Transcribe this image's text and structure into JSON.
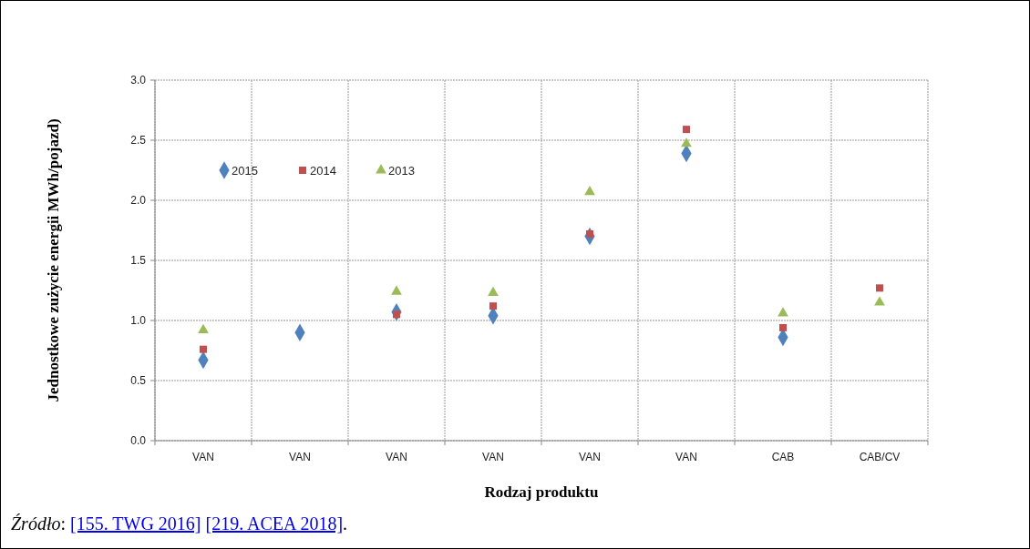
{
  "chart_data": {
    "type": "scatter",
    "xlabel": "Rodzaj produktu",
    "ylabel": "Jednostkowe zużycie energii MWh/pojazd)",
    "categories": [
      "VAN",
      "VAN",
      "VAN",
      "VAN",
      "VAN",
      "VAN",
      "CAB",
      "CAB/CV"
    ],
    "series": [
      {
        "name": "2015",
        "color": "#4f81bd",
        "marker": "diamond",
        "values": [
          0.67,
          0.9,
          1.07,
          1.04,
          1.7,
          2.39,
          0.86,
          null
        ]
      },
      {
        "name": "2014",
        "color": "#c0504d",
        "marker": "square",
        "values": [
          0.76,
          null,
          1.05,
          1.12,
          1.72,
          2.59,
          0.94,
          1.27
        ]
      },
      {
        "name": "2013",
        "color": "#9bbb59",
        "marker": "triangle",
        "values": [
          0.92,
          null,
          1.24,
          1.23,
          2.07,
          2.47,
          1.06,
          1.15
        ]
      }
    ],
    "ylim": [
      0,
      3
    ],
    "yticks": [
      {
        "value": 0,
        "label": "0.0"
      },
      {
        "value": 0.5,
        "label": "0.5"
      },
      {
        "value": 1,
        "label": "1.0"
      },
      {
        "value": 1.5,
        "label": "1.5"
      },
      {
        "value": 2,
        "label": "2.0"
      },
      {
        "value": 2.5,
        "label": "2.5"
      },
      {
        "value": 3,
        "label": "3.0"
      }
    ],
    "grid": true,
    "legend": "top left",
    "annotations": [
      "Źródło: [155. TWG 2016] [219. ACEA 2018]."
    ]
  }
}
